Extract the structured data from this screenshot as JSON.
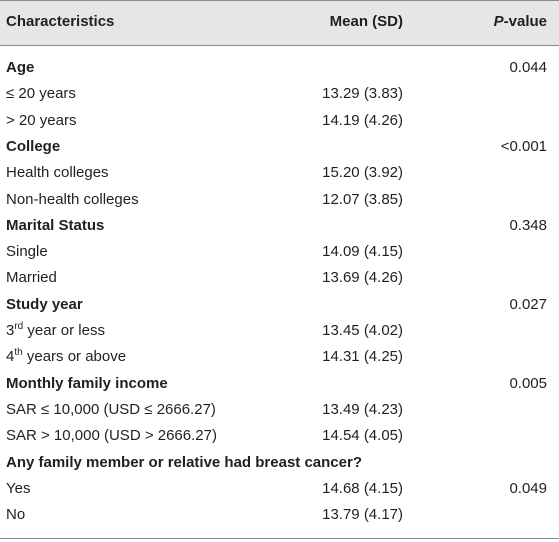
{
  "table": {
    "header": {
      "characteristics": "Characteristics",
      "mean": "Mean (SD)",
      "pvalue": [
        "P",
        "-value"
      ]
    },
    "rows": [
      {
        "label": "Age",
        "group": true,
        "p": "0.044"
      },
      {
        "label": "≤ 20 years",
        "mean": "13.29 (3.83)"
      },
      {
        "label": "> 20 years",
        "mean": "14.19 (4.26)"
      },
      {
        "label": "College",
        "group": true,
        "p": "<0.001"
      },
      {
        "label": "Health colleges",
        "mean": "15.20 (3.92)"
      },
      {
        "label": "Non-health colleges",
        "mean": "12.07 (3.85)"
      },
      {
        "label": "Marital Status",
        "group": true,
        "p": "0.348"
      },
      {
        "label": "Single",
        "mean": "14.09 (4.15)"
      },
      {
        "label": "Married",
        "mean": "13.69 (4.26)"
      },
      {
        "label": "Study year",
        "group": true,
        "p": "0.027"
      },
      {
        "label_parts": [
          "3",
          "rd",
          " year or less"
        ],
        "mean": "13.45 (4.02)"
      },
      {
        "label_parts": [
          "4",
          "th",
          " years or above"
        ],
        "mean": "14.31 (4.25)"
      },
      {
        "label": "Monthly family income",
        "group": true,
        "p": "0.005"
      },
      {
        "label": "SAR ≤ 10,000 (USD ≤ 2666.27)",
        "mean": "13.49 (4.23)"
      },
      {
        "label": "SAR > 10,000 (USD > 2666.27)",
        "mean": "14.54 (4.05)"
      },
      {
        "label": "Any family member or relative had breast cancer?",
        "group": true
      },
      {
        "label": "Yes",
        "mean": "14.68 (4.15)",
        "p": "0.049"
      },
      {
        "label": "No",
        "mean": "13.79 (4.17)"
      }
    ]
  }
}
